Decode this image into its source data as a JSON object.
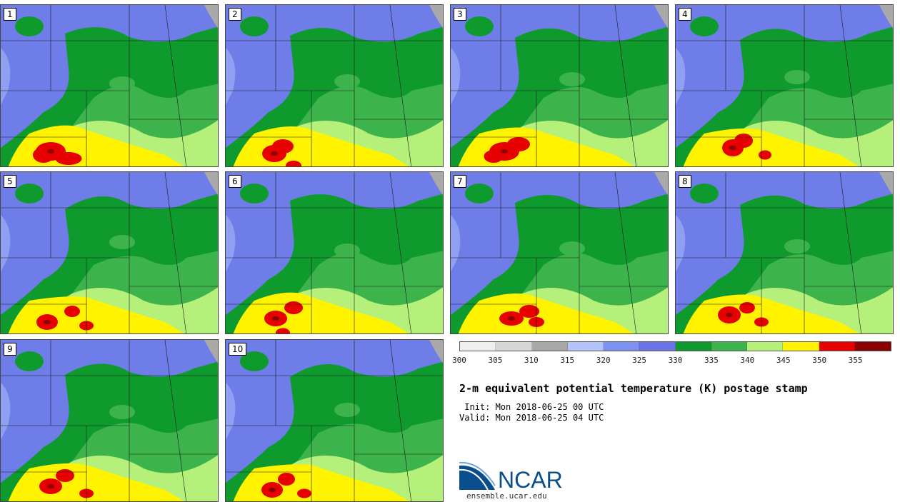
{
  "panels": [
    {
      "label": "1",
      "hot": [
        [
          70,
          205,
          30,
          18
        ],
        [
          95,
          215,
          25,
          10
        ],
        [
          60,
          210,
          18,
          14
        ]
      ]
    },
    {
      "label": "2",
      "hot": [
        [
          68,
          208,
          22,
          16
        ],
        [
          80,
          198,
          18,
          12
        ],
        [
          95,
          225,
          10,
          6
        ]
      ]
    },
    {
      "label": "3",
      "hot": [
        [
          75,
          205,
          30,
          18
        ],
        [
          95,
          195,
          20,
          12
        ],
        [
          60,
          212,
          15,
          10
        ]
      ]
    },
    {
      "label": "4",
      "hot": [
        [
          80,
          200,
          18,
          16
        ],
        [
          95,
          190,
          14,
          12
        ],
        [
          125,
          210,
          6,
          5
        ]
      ]
    },
    {
      "label": "5",
      "hot": [
        [
          65,
          210,
          18,
          14
        ],
        [
          100,
          195,
          10,
          8
        ],
        [
          120,
          215,
          8,
          5
        ]
      ]
    },
    {
      "label": "6",
      "hot": [
        [
          70,
          205,
          20,
          14
        ],
        [
          95,
          190,
          14,
          10
        ],
        [
          80,
          225,
          8,
          5
        ]
      ]
    },
    {
      "label": "7",
      "hot": [
        [
          85,
          205,
          22,
          12
        ],
        [
          110,
          195,
          16,
          10
        ],
        [
          120,
          210,
          10,
          6
        ]
      ]
    },
    {
      "label": "8",
      "hot": [
        [
          75,
          200,
          20,
          16
        ],
        [
          100,
          190,
          10,
          8
        ],
        [
          120,
          210,
          8,
          5
        ]
      ]
    },
    {
      "label": "9",
      "hot": [
        [
          70,
          205,
          20,
          14
        ],
        [
          90,
          190,
          14,
          10
        ],
        [
          120,
          215,
          8,
          5
        ]
      ]
    },
    {
      "label": "10",
      "hot": [
        [
          65,
          210,
          18,
          14
        ],
        [
          85,
          195,
          12,
          10
        ],
        [
          110,
          215,
          8,
          5
        ]
      ]
    }
  ],
  "colorbar": {
    "colors": [
      "#efefef",
      "#d6d6d6",
      "#a9a9a9",
      "#b4c4fa",
      "#7d92f0",
      "#6a74e6",
      "#0f9a2e",
      "#3cb44b",
      "#b4f07a",
      "#fff300",
      "#e60000",
      "#8b0000"
    ],
    "ticks": [
      "300",
      "305",
      "310",
      "315",
      "320",
      "325",
      "330",
      "335",
      "340",
      "345",
      "350",
      "355"
    ]
  },
  "title": "2-m equivalent potential temperature (K) postage stamp",
  "init": " Init: Mon 2018-06-25 00 UTC",
  "valid": "Valid: Mon 2018-06-25 04 UTC",
  "logo": {
    "name": "NCAR",
    "url": "ensemble.ucar.edu"
  }
}
